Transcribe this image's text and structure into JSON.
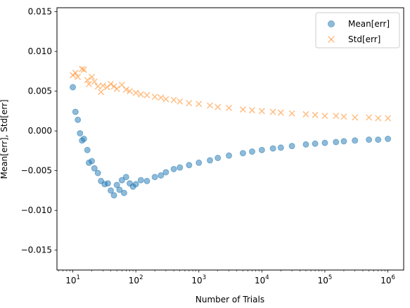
{
  "chart_data": {
    "type": "scatter",
    "xlabel": "Number of Trials",
    "ylabel": "Mean[err], Std[err]",
    "xscale": "log",
    "xlim": [
      5.6,
      1780000
    ],
    "ylim": [
      -0.0175,
      0.0155
    ],
    "xticks": [
      {
        "value": 10,
        "base": "10",
        "exp": "1"
      },
      {
        "value": 100,
        "base": "10",
        "exp": "2"
      },
      {
        "value": 1000,
        "base": "10",
        "exp": "3"
      },
      {
        "value": 10000,
        "base": "10",
        "exp": "4"
      },
      {
        "value": 100000,
        "base": "10",
        "exp": "5"
      },
      {
        "value": 1000000,
        "base": "10",
        "exp": "6"
      }
    ],
    "yticks": [
      {
        "value": 0.015,
        "label": "0.015"
      },
      {
        "value": 0.01,
        "label": "0.010"
      },
      {
        "value": 0.005,
        "label": "0.005"
      },
      {
        "value": 0.0,
        "label": "0.000"
      },
      {
        "value": -0.005,
        "label": "−0.005"
      },
      {
        "value": -0.01,
        "label": "−0.010"
      },
      {
        "value": -0.015,
        "label": "−0.015"
      }
    ],
    "grid": false,
    "legend_position": "top-right",
    "series": [
      {
        "name": "Mean[err]",
        "marker": "circle",
        "color": "#1f77b4",
        "points": [
          [
            10,
            0.0055
          ],
          [
            11,
            0.0024
          ],
          [
            12,
            0.0014
          ],
          [
            13,
            -0.0003
          ],
          [
            14,
            -0.0012
          ],
          [
            15,
            -0.001
          ],
          [
            17,
            -0.0024
          ],
          [
            18,
            -0.004
          ],
          [
            20,
            -0.0038
          ],
          [
            22,
            -0.0047
          ],
          [
            25,
            -0.0053
          ],
          [
            28,
            -0.0063
          ],
          [
            32,
            -0.0067
          ],
          [
            36,
            -0.0066
          ],
          [
            40,
            -0.0075
          ],
          [
            45,
            -0.0081
          ],
          [
            50,
            -0.0068
          ],
          [
            55,
            -0.0074
          ],
          [
            60,
            -0.0062
          ],
          [
            65,
            -0.0078
          ],
          [
            70,
            -0.0058
          ],
          [
            80,
            -0.0066
          ],
          [
            90,
            -0.007
          ],
          [
            100,
            -0.0067
          ],
          [
            120,
            -0.0062
          ],
          [
            150,
            -0.0063
          ],
          [
            200,
            -0.0058
          ],
          [
            250,
            -0.0056
          ],
          [
            300,
            -0.0052
          ],
          [
            400,
            -0.0048
          ],
          [
            500,
            -0.0046
          ],
          [
            700,
            -0.0043
          ],
          [
            1000,
            -0.004
          ],
          [
            1500,
            -0.0037
          ],
          [
            2000,
            -0.0034
          ],
          [
            3000,
            -0.0031
          ],
          [
            5000,
            -0.0028
          ],
          [
            7000,
            -0.0026
          ],
          [
            10000,
            -0.0024
          ],
          [
            15000,
            -0.0022
          ],
          [
            20000,
            -0.0021
          ],
          [
            30000,
            -0.0019
          ],
          [
            50000,
            -0.0017
          ],
          [
            70000,
            -0.0016
          ],
          [
            100000,
            -0.0015
          ],
          [
            150000,
            -0.0014
          ],
          [
            200000,
            -0.0013
          ],
          [
            300000,
            -0.0012
          ],
          [
            500000,
            -0.0011
          ],
          [
            700000,
            -0.0011
          ],
          [
            1000000,
            -0.001
          ]
        ]
      },
      {
        "name": "Std[err]",
        "marker": "x",
        "color": "#ff7f0e",
        "points": [
          [
            10,
            0.007
          ],
          [
            11,
            0.0073
          ],
          [
            12,
            0.0068
          ],
          [
            14,
            0.0078
          ],
          [
            15,
            0.0077
          ],
          [
            17,
            0.0064
          ],
          [
            18,
            0.0059
          ],
          [
            20,
            0.0068
          ],
          [
            22,
            0.0062
          ],
          [
            25,
            0.0056
          ],
          [
            28,
            0.0049
          ],
          [
            30,
            0.0057
          ],
          [
            35,
            0.0055
          ],
          [
            40,
            0.0059
          ],
          [
            45,
            0.0056
          ],
          [
            50,
            0.0053
          ],
          [
            60,
            0.0058
          ],
          [
            70,
            0.0052
          ],
          [
            80,
            0.005
          ],
          [
            100,
            0.0048
          ],
          [
            120,
            0.0046
          ],
          [
            150,
            0.0045
          ],
          [
            200,
            0.0043
          ],
          [
            250,
            0.0042
          ],
          [
            300,
            0.004
          ],
          [
            400,
            0.0039
          ],
          [
            500,
            0.0037
          ],
          [
            700,
            0.0035
          ],
          [
            1000,
            0.0034
          ],
          [
            1500,
            0.0032
          ],
          [
            2000,
            0.003
          ],
          [
            3000,
            0.0029
          ],
          [
            5000,
            0.0027
          ],
          [
            7000,
            0.0026
          ],
          [
            10000,
            0.0025
          ],
          [
            15000,
            0.0024
          ],
          [
            20000,
            0.0023
          ],
          [
            30000,
            0.0022
          ],
          [
            50000,
            0.0021
          ],
          [
            70000,
            0.002
          ],
          [
            100000,
            0.0019
          ],
          [
            150000,
            0.0019
          ],
          [
            200000,
            0.0018
          ],
          [
            300000,
            0.0017
          ],
          [
            500000,
            0.0017
          ],
          [
            700000,
            0.0016
          ],
          [
            1000000,
            0.0016
          ]
        ]
      }
    ]
  }
}
